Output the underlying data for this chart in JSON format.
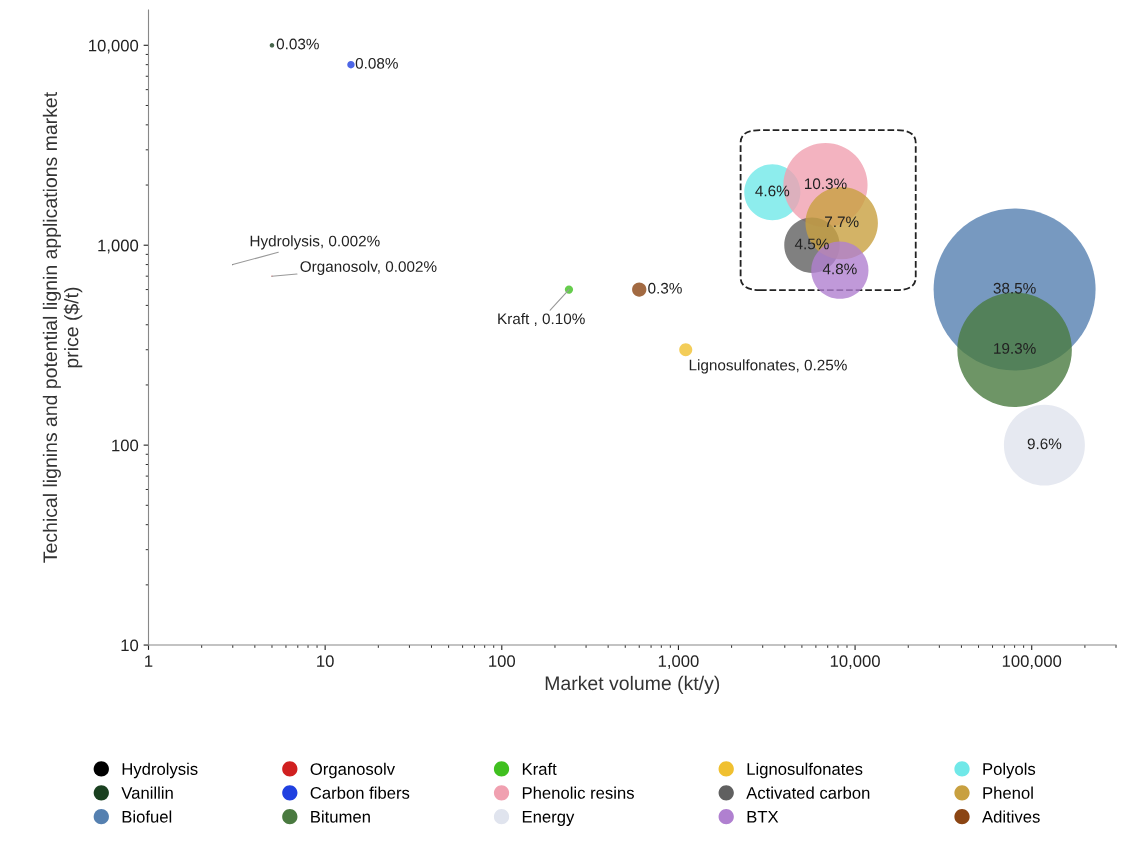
{
  "chart_data": {
    "type": "bubble",
    "xlabel": "Market volume (kt/y)",
    "ylabel": "Techical lignins and potential lignin applications market\nprice ($/t)",
    "log": "xy",
    "xlim": [
      1,
      300000
    ],
    "ylim": [
      10,
      15000
    ],
    "xticks": [
      1,
      10,
      100,
      {
        "value": 1000,
        "label": "1,000"
      },
      {
        "value": 10000,
        "label": "10,000"
      },
      {
        "value": 100000,
        "label": "100,000"
      }
    ],
    "yticks": [
      10,
      100,
      {
        "value": 1000,
        "label": "1,000"
      },
      {
        "value": 10000,
        "label": "10,000"
      }
    ],
    "grid": false,
    "legend": "bottom",
    "series": [
      {
        "name": "Hydrolysis",
        "color": "#000000",
        "x": [
          3
        ],
        "values": [
          800
        ],
        "sizes": [
          5e-05
        ]
      },
      {
        "name": "Organosolv",
        "color": "#d02020",
        "x": [
          5
        ],
        "values": [
          700
        ],
        "sizes": [
          5e-05
        ]
      },
      {
        "name": "Kraft",
        "color": "#40c020",
        "x": [
          240
        ],
        "values": [
          600
        ],
        "sizes": [
          0.0026
        ]
      },
      {
        "name": "Lignosulfonates",
        "color": "#f0c030",
        "x": [
          1100
        ],
        "values": [
          300
        ],
        "sizes": [
          0.0065
        ]
      },
      {
        "name": "Polyols",
        "color": "#70e8e8",
        "x": [
          3400
        ],
        "values": [
          1840
        ],
        "sizes": [
          0.12
        ]
      },
      {
        "name": "Vanillin",
        "color": "#1a4020",
        "x": [
          5
        ],
        "values": [
          10000
        ],
        "sizes": [
          0.0008
        ]
      },
      {
        "name": "Carbon fibers",
        "color": "#2040e0",
        "x": [
          14
        ],
        "values": [
          8000
        ],
        "sizes": [
          0.0021
        ]
      },
      {
        "name": "Phenolic resins",
        "color": "#f0a0b0",
        "x": [
          6800
        ],
        "values": [
          2000
        ],
        "sizes": [
          0.27
        ]
      },
      {
        "name": "Activated carbon",
        "color": "#606060",
        "x": [
          5700
        ],
        "values": [
          1000
        ],
        "sizes": [
          0.117
        ]
      },
      {
        "name": "Phenol",
        "color": "#c8a040",
        "x": [
          8400
        ],
        "values": [
          1290
        ],
        "sizes": [
          0.2
        ]
      },
      {
        "name": "Biofuel",
        "color": "#5580b0",
        "x": [
          80000
        ],
        "values": [
          600
        ],
        "sizes": [
          1
        ]
      },
      {
        "name": "Bitumen",
        "color": "#4a7a40",
        "x": [
          80000
        ],
        "values": [
          300
        ],
        "sizes": [
          0.5
        ]
      },
      {
        "name": "Energy",
        "color": "#e0e4ee",
        "x": [
          118000
        ],
        "values": [
          100
        ],
        "sizes": [
          0.25
        ]
      },
      {
        "name": "BTX",
        "color": "#b080d0",
        "x": [
          8200
        ],
        "values": [
          750
        ],
        "sizes": [
          0.125
        ]
      },
      {
        "name": "Aditives",
        "color": "#8b4513",
        "x": [
          600
        ],
        "values": [
          600
        ],
        "sizes": [
          0.0078
        ]
      }
    ],
    "annotations": [
      {
        "text": "Hydrolysis, 0.002%",
        "x": 3,
        "y": 800
      },
      {
        "text": "Organosolv, 0.002%",
        "x": 5,
        "y": 700
      },
      {
        "text": "Kraft , 0.10%",
        "x": 240,
        "y": 600
      },
      {
        "text": "Lignosulfonates, 0.25%",
        "x": 1100,
        "y": 300
      },
      {
        "text": "4.6%",
        "x": 3400,
        "y": 1840
      },
      {
        "text": "0.03%",
        "x": 5,
        "y": 10000
      },
      {
        "text": "0.08%",
        "x": 14,
        "y": 8000
      },
      {
        "text": "10.3%",
        "x": 6800,
        "y": 2000
      },
      {
        "text": "4.5%",
        "x": 5700,
        "y": 1000
      },
      {
        "text": "7.7%",
        "x": 8400,
        "y": 1290
      },
      {
        "text": "38.5%",
        "x": 80000,
        "y": 600
      },
      {
        "text": "19.3%",
        "x": 80000,
        "y": 300
      },
      {
        "text": "9.6%",
        "x": 118000,
        "y": 100
      },
      {
        "text": "4.8%",
        "x": 8200,
        "y": 750
      },
      {
        "text": "0.3%",
        "x": 600,
        "y": 600
      }
    ]
  }
}
